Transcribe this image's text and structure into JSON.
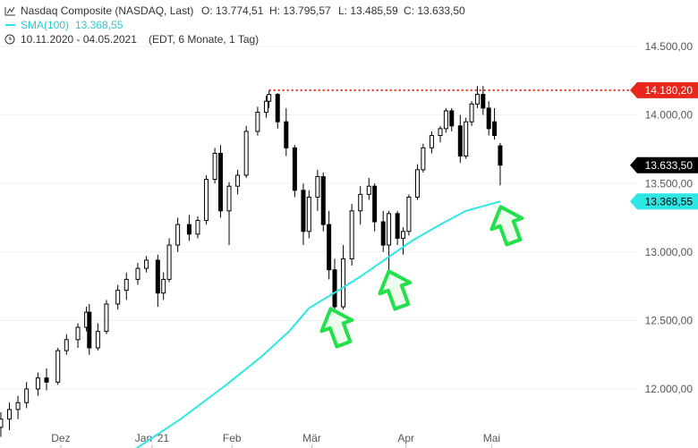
{
  "chart_data": {
    "type": "candlestick",
    "title": "Nasdaq Composite (NASDAQ, Last)",
    "ohlc_labels": [
      "O: 13.774,51",
      "H: 13.795,57",
      "L: 13.485,59",
      "C: 13.633,50"
    ],
    "range_label": "10.11.2020 - 04.05.2021",
    "range_note": "(EDT, 6 Monate, 1 Tag)",
    "up_color": "#ffffff",
    "down_color": "#000000",
    "x": [
      0,
      3,
      6,
      9,
      13,
      16,
      20,
      23,
      27,
      30,
      31,
      34,
      37,
      41,
      44,
      48,
      51,
      55,
      57,
      59,
      62,
      66,
      69,
      72,
      75,
      77,
      80,
      83,
      86,
      90,
      93,
      94,
      97,
      100,
      103,
      106,
      108,
      111,
      113,
      115,
      117,
      120,
      123,
      126,
      129,
      131,
      134,
      136,
      139,
      141,
      143,
      146,
      148,
      151,
      154,
      156,
      158,
      161,
      163,
      165,
      167,
      169,
      171,
      173,
      175
    ],
    "open": [
      11720,
      11780,
      11850,
      11900,
      12000,
      12080,
      12050,
      12280,
      12360,
      12450,
      12560,
      12300,
      12420,
      12620,
      12720,
      12800,
      12880,
      12940,
      12700,
      12800,
      13050,
      13200,
      13130,
      13230,
      13530,
      13720,
      13300,
      13480,
      13560,
      13880,
      14020,
      14100,
      14150,
      13950,
      13760,
      13450,
      13150,
      13400,
      13550,
      13200,
      12870,
      12600,
      12950,
      13300,
      13420,
      13480,
      13220,
      13050,
      13280,
      13100,
      13150,
      13400,
      13600,
      13760,
      13850,
      13900,
      14030,
      13920,
      13700,
      13950,
      14080,
      14150,
      14050,
      13950,
      13774.51
    ],
    "high": [
      11830,
      11900,
      11950,
      12050,
      12120,
      12150,
      12300,
      12400,
      12480,
      12600,
      12620,
      12480,
      12650,
      12760,
      12850,
      12920,
      12970,
      12980,
      12850,
      13100,
      13250,
      13270,
      13260,
      13560,
      13760,
      13780,
      13510,
      13600,
      13920,
      14060,
      14140,
      14180,
      14160,
      14050,
      13780,
      13500,
      13450,
      13600,
      13580,
      13300,
      12950,
      13050,
      13350,
      13480,
      13540,
      13500,
      13300,
      13300,
      13300,
      13180,
      13420,
      13640,
      13790,
      13880,
      13920,
      14050,
      14050,
      14000,
      13980,
      14100,
      14210,
      14211,
      14100,
      14050,
      13795.57
    ],
    "low": [
      11650,
      11700,
      11780,
      11860,
      11950,
      11990,
      12030,
      12250,
      12300,
      12420,
      12250,
      12280,
      12400,
      12580,
      12650,
      12760,
      12850,
      12600,
      12650,
      12780,
      13000,
      13080,
      13100,
      13200,
      13500,
      13250,
      13050,
      13420,
      13540,
      13850,
      13980,
      14050,
      13900,
      13700,
      13400,
      13050,
      13100,
      13300,
      13150,
      12800,
      12400,
      12580,
      12900,
      13200,
      13380,
      13150,
      13000,
      12850,
      13050,
      12980,
      13120,
      13380,
      13580,
      13720,
      13800,
      13870,
      13880,
      13650,
      13680,
      13920,
      14050,
      14000,
      13850,
      13820,
      13485.59
    ],
    "close": [
      11780,
      11850,
      11900,
      12000,
      12080,
      12050,
      12280,
      12360,
      12450,
      12560,
      12300,
      12420,
      12620,
      12720,
      12800,
      12880,
      12940,
      12700,
      12800,
      13050,
      13200,
      13130,
      13230,
      13530,
      13720,
      13300,
      13480,
      13560,
      13880,
      14020,
      14100,
      14150,
      13950,
      13760,
      13450,
      13150,
      13400,
      13550,
      13200,
      12870,
      12600,
      12950,
      13300,
      13420,
      13480,
      13220,
      13050,
      13280,
      13100,
      13150,
      13400,
      13600,
      13760,
      13850,
      13900,
      14030,
      13920,
      13700,
      13950,
      14080,
      14150,
      14050,
      13900,
      13850,
      13633.5
    ],
    "last_label": "13.633,50",
    "sma": {
      "name": "SMA(100)",
      "color": "#2ee6e6",
      "value_label": "13.368,55",
      "x": [
        47,
        63,
        79,
        91,
        101,
        108,
        116,
        126,
        135,
        144,
        154,
        163,
        175
      ],
      "values": [
        11560,
        11780,
        12030,
        12230,
        12420,
        12590,
        12690,
        12820,
        12950,
        13080,
        13200,
        13300,
        13368.55
      ]
    },
    "resistance": {
      "value": 14180.2,
      "label": "14.180,20",
      "x": 94,
      "color": "#e8261c"
    },
    "xlim": [
      -0.3,
      223
    ],
    "ylim": [
      11569,
      14839
    ],
    "xticks": [
      {
        "value": 21,
        "label": "Dez"
      },
      {
        "value": 53,
        "label": "Jan '21"
      },
      {
        "value": 81,
        "label": "Feb"
      },
      {
        "value": 109,
        "label": "Mär"
      },
      {
        "value": 142,
        "label": "Apr"
      },
      {
        "value": 172,
        "label": "Mai"
      }
    ],
    "yticks": [
      {
        "value": 12000,
        "label": "12.000,00"
      },
      {
        "value": 12500,
        "label": "12.500,00"
      },
      {
        "value": 13000,
        "label": "13.000,00"
      },
      {
        "value": 13500,
        "label": "13.500,00"
      },
      {
        "value": 14000,
        "label": "14.000,00"
      },
      {
        "value": 14500,
        "label": "14.500,00"
      }
    ],
    "grid": true
  }
}
